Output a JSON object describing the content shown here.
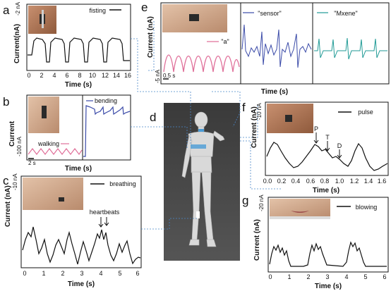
{
  "panels": {
    "a": {
      "letter": "a",
      "scale": "-2 nA",
      "ylabel": "Current(nA)",
      "xlabel": "Time (s)",
      "legend": "fisting",
      "xticks": [
        "0",
        "2",
        "4",
        "6",
        "8",
        "10",
        "12",
        "14",
        "16"
      ],
      "color": "#111111"
    },
    "b": {
      "letter": "b",
      "scale": "-100 nA",
      "ylabel": "Current",
      "xlabel": "Time (s)",
      "legend_walking": "walking",
      "legend_bending": "bending",
      "timebar": "2 s",
      "walking_color": "#e0709a",
      "bending_color": "#3a4aa8"
    },
    "c": {
      "letter": "c",
      "scale": "-10 nA",
      "ylabel": "Current (nA)",
      "xlabel": "Time (s)",
      "legend": "breathing",
      "annotation": "heartbeats",
      "xticks": [
        "0",
        "1",
        "2",
        "3",
        "4",
        "5",
        "6"
      ]
    },
    "d": {
      "letter": "d"
    },
    "e": {
      "letter": "e",
      "ylabel": "Current (nA)",
      "scale": "-5 nA",
      "timebar": "0.5 s",
      "xlabel": "Time (s)",
      "legend_a": "\"a\"",
      "legend_sensor": "\"sensor\"",
      "legend_mxene": "\"Mxene\"",
      "a_color": "#e0709a",
      "sensor_color": "#3a4aa8",
      "mxene_color": "#1f9a95"
    },
    "f": {
      "letter": "f",
      "scale": "-10 nA",
      "ylabel": "Current (nA)",
      "xlabel": "Time (s)",
      "legend": "pulse",
      "peaks": [
        "P",
        "T",
        "D"
      ],
      "xticks": [
        "0.0",
        "0.2",
        "0.4",
        "0.6",
        "0.8",
        "1.0",
        "1.2",
        "1.4",
        "1.6"
      ]
    },
    "g": {
      "letter": "g",
      "scale": "-20 nA",
      "ylabel": "Current (nA)",
      "xlabel": "Time (s)",
      "legend": "blowing",
      "xticks": [
        "0",
        "1",
        "2",
        "3",
        "4",
        "5",
        "6"
      ]
    }
  }
}
